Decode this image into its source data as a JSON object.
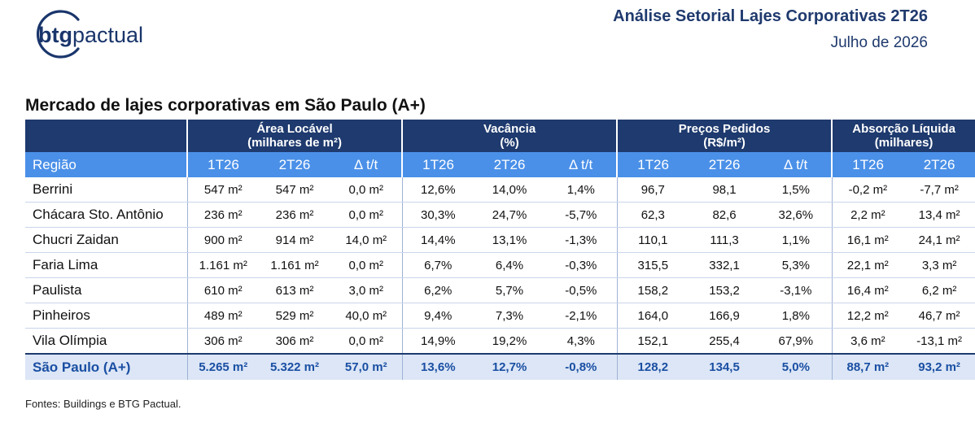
{
  "header": {
    "logo_text_bold": "btg",
    "logo_text_light": "pactual",
    "report_title": "Análise Setorial Lajes Corporativas 2T26",
    "report_date": "Julho de 2026"
  },
  "table": {
    "title": "Mercado de lajes corporativas em São Paulo (A+)",
    "groups": [
      {
        "line1": "Área Locável",
        "line2": "(milhares de m²)"
      },
      {
        "line1": "Vacância",
        "line2": "(%)"
      },
      {
        "line1": "Preços Pedidos",
        "line2": "(R$/m²)"
      },
      {
        "line1": "Absorção Líquida",
        "line2": "(milhares)"
      }
    ],
    "subheaders": [
      "Região",
      "1T26",
      "2T26",
      "Δ t/t",
      "1T26",
      "2T26",
      "Δ t/t",
      "1T26",
      "2T26",
      "Δ t/t",
      "1T26",
      "2T26"
    ],
    "rows": [
      [
        "Berrini",
        "547 m²",
        "547 m²",
        "0,0 m²",
        "12,6%",
        "14,0%",
        "1,4%",
        "96,7",
        "98,1",
        "1,5%",
        "-0,2 m²",
        "-7,7 m²"
      ],
      [
        "Chácara Sto. Antônio",
        "236 m²",
        "236 m²",
        "0,0 m²",
        "30,3%",
        "24,7%",
        "-5,7%",
        "62,3",
        "82,6",
        "32,6%",
        "2,2 m²",
        "13,4 m²"
      ],
      [
        "Chucri Zaidan",
        "900 m²",
        "914 m²",
        "14,0 m²",
        "14,4%",
        "13,1%",
        "-1,3%",
        "110,1",
        "111,3",
        "1,1%",
        "16,1 m²",
        "24,1 m²"
      ],
      [
        "Faria Lima",
        "1.161 m²",
        "1.161 m²",
        "0,0 m²",
        "6,7%",
        "6,4%",
        "-0,3%",
        "315,5",
        "332,1",
        "5,3%",
        "22,1 m²",
        "3,3 m²"
      ],
      [
        "Paulista",
        "610 m²",
        "613 m²",
        "3,0 m²",
        "6,2%",
        "5,7%",
        "-0,5%",
        "158,2",
        "153,2",
        "-3,1%",
        "16,4 m²",
        "6,2 m²"
      ],
      [
        "Pinheiros",
        "489 m²",
        "529 m²",
        "40,0 m²",
        "9,4%",
        "7,3%",
        "-2,1%",
        "164,0",
        "166,9",
        "1,8%",
        "12,2 m²",
        "46,7 m²"
      ],
      [
        "Vila Olímpia",
        "306 m²",
        "306 m²",
        "0,0 m²",
        "14,9%",
        "19,2%",
        "4,3%",
        "152,1",
        "255,4",
        "67,9%",
        "3,6 m²",
        "-13,1 m²"
      ]
    ],
    "total": [
      "São Paulo (A+)",
      "5.265 m²",
      "5.322 m²",
      "57,0 m²",
      "13,6%",
      "12,7%",
      "-0,8%",
      "128,2",
      "134,5",
      "5,0%",
      "88,7 m²",
      "93,2 m²"
    ]
  },
  "footnote": "Fontes: Buildings e BTG Pactual.",
  "colors": {
    "navy": "#1e3a6e",
    "subheader_blue": "#4a90e8",
    "total_row_bg": "#dce6f6",
    "total_row_text": "#1a4fa3"
  }
}
